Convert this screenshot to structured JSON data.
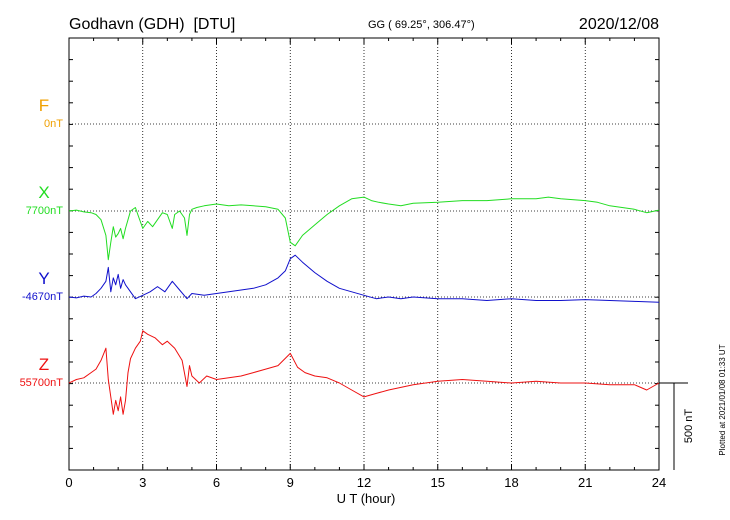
{
  "header": {
    "station": "Godhavn (GDH)  [DTU]",
    "coords": "GG ( 69.25°, 306.47°)",
    "date": "2020/12/08"
  },
  "side_note": "Plotted at 2021/01/08 01:33 UT",
  "scale_label": "500 nT",
  "chart_data": {
    "type": "line",
    "xlabel": "U T (hour)",
    "xlim": [
      0,
      24
    ],
    "xticks": [
      0,
      3,
      6,
      9,
      12,
      15,
      18,
      21,
      24
    ],
    "scale_nt": 500,
    "colors": {
      "F": "#f0a000",
      "X": "#22dd22",
      "Y": "#1010cc",
      "Z": "#ee1111"
    },
    "series": [
      {
        "name": "F",
        "baseline_label": "0nT",
        "baseline_nt": 0,
        "color": "#f0a000",
        "x": [],
        "y": []
      },
      {
        "name": "X",
        "baseline_label": "7700nT",
        "baseline_nt": 7700,
        "color": "#22dd22",
        "x": [
          0,
          0.3,
          0.6,
          0.9,
          1.1,
          1.3,
          1.5,
          1.6,
          1.7,
          1.8,
          1.9,
          2.0,
          2.1,
          2.2,
          2.3,
          2.5,
          2.7,
          2.8,
          3.0,
          3.2,
          3.4,
          3.6,
          3.8,
          4.0,
          4.2,
          4.3,
          4.5,
          4.7,
          4.8,
          4.9,
          5.0,
          5.2,
          5.5,
          6.0,
          6.5,
          7.0,
          7.5,
          8.0,
          8.5,
          8.8,
          9.0,
          9.2,
          9.5,
          10.0,
          10.5,
          11.0,
          11.5,
          12.0,
          12.3,
          12.6,
          13.0,
          13.5,
          14.0,
          15.0,
          16.0,
          17.0,
          18.0,
          19.0,
          19.5,
          20.0,
          21.0,
          21.5,
          22.0,
          23.0,
          23.5,
          24.0
        ],
        "y": [
          7700,
          7705,
          7695,
          7690,
          7680,
          7650,
          7560,
          7420,
          7520,
          7610,
          7550,
          7570,
          7600,
          7540,
          7600,
          7700,
          7720,
          7680,
          7600,
          7640,
          7610,
          7650,
          7690,
          7680,
          7600,
          7680,
          7700,
          7660,
          7560,
          7680,
          7710,
          7720,
          7730,
          7740,
          7730,
          7735,
          7730,
          7725,
          7710,
          7660,
          7520,
          7500,
          7560,
          7620,
          7680,
          7730,
          7770,
          7780,
          7760,
          7750,
          7740,
          7730,
          7745,
          7750,
          7760,
          7760,
          7770,
          7770,
          7780,
          7770,
          7760,
          7750,
          7730,
          7710,
          7690,
          7705
        ]
      },
      {
        "name": "Y",
        "baseline_label": "-4670nT",
        "baseline_nt": -4670,
        "color": "#1010cc",
        "x": [
          0,
          0.3,
          0.6,
          0.9,
          1.1,
          1.3,
          1.5,
          1.6,
          1.7,
          1.8,
          1.9,
          2.0,
          2.1,
          2.2,
          2.3,
          2.5,
          2.7,
          3.0,
          3.3,
          3.6,
          3.9,
          4.2,
          4.5,
          4.8,
          5.0,
          5.5,
          6.0,
          6.5,
          7.0,
          7.5,
          8.0,
          8.5,
          8.8,
          9.0,
          9.2,
          9.5,
          10.0,
          10.5,
          11.0,
          11.5,
          12.0,
          12.5,
          13.0,
          13.5,
          14.0,
          15.0,
          16.0,
          17.0,
          18.0,
          19.0,
          20.0,
          21.0,
          22.0,
          23.0,
          24.0
        ],
        "y": [
          -4670,
          -4675,
          -4665,
          -4670,
          -4650,
          -4620,
          -4580,
          -4500,
          -4640,
          -4560,
          -4600,
          -4540,
          -4620,
          -4570,
          -4600,
          -4640,
          -4680,
          -4660,
          -4640,
          -4610,
          -4640,
          -4580,
          -4630,
          -4680,
          -4650,
          -4660,
          -4650,
          -4640,
          -4630,
          -4620,
          -4600,
          -4560,
          -4520,
          -4450,
          -4430,
          -4470,
          -4530,
          -4580,
          -4620,
          -4640,
          -4660,
          -4680,
          -4670,
          -4680,
          -4670,
          -4680,
          -4680,
          -4690,
          -4680,
          -4690,
          -4690,
          -4685,
          -4690,
          -4695,
          -4700
        ]
      },
      {
        "name": "Z",
        "baseline_label": "55700nT",
        "baseline_nt": 55700,
        "color": "#ee1111",
        "x": [
          0,
          0.3,
          0.6,
          0.9,
          1.1,
          1.3,
          1.5,
          1.6,
          1.7,
          1.8,
          1.9,
          2.0,
          2.1,
          2.2,
          2.3,
          2.4,
          2.5,
          2.7,
          2.9,
          3.0,
          3.2,
          3.5,
          3.8,
          4.0,
          4.3,
          4.6,
          4.8,
          4.9,
          5.0,
          5.3,
          5.6,
          6.0,
          6.5,
          7.0,
          7.5,
          8.0,
          8.5,
          9.0,
          9.3,
          9.6,
          10.0,
          10.5,
          11.0,
          11.5,
          12.0,
          12.5,
          13.0,
          14.0,
          15.0,
          16.0,
          17.0,
          18.0,
          19.0,
          20.0,
          21.0,
          22.0,
          23.0,
          23.5,
          24.0
        ],
        "y": [
          55700,
          55720,
          55730,
          55760,
          55780,
          55830,
          55900,
          55720,
          55620,
          55520,
          55600,
          55540,
          55620,
          55520,
          55600,
          55760,
          55840,
          55900,
          55940,
          56000,
          55980,
          55960,
          55920,
          55940,
          55900,
          55830,
          55680,
          55800,
          55740,
          55700,
          55740,
          55720,
          55730,
          55740,
          55760,
          55780,
          55800,
          55870,
          55790,
          55760,
          55740,
          55730,
          55700,
          55660,
          55620,
          55640,
          55660,
          55690,
          55710,
          55720,
          55710,
          55700,
          55710,
          55700,
          55700,
          55690,
          55690,
          55660,
          55700
        ]
      }
    ]
  }
}
